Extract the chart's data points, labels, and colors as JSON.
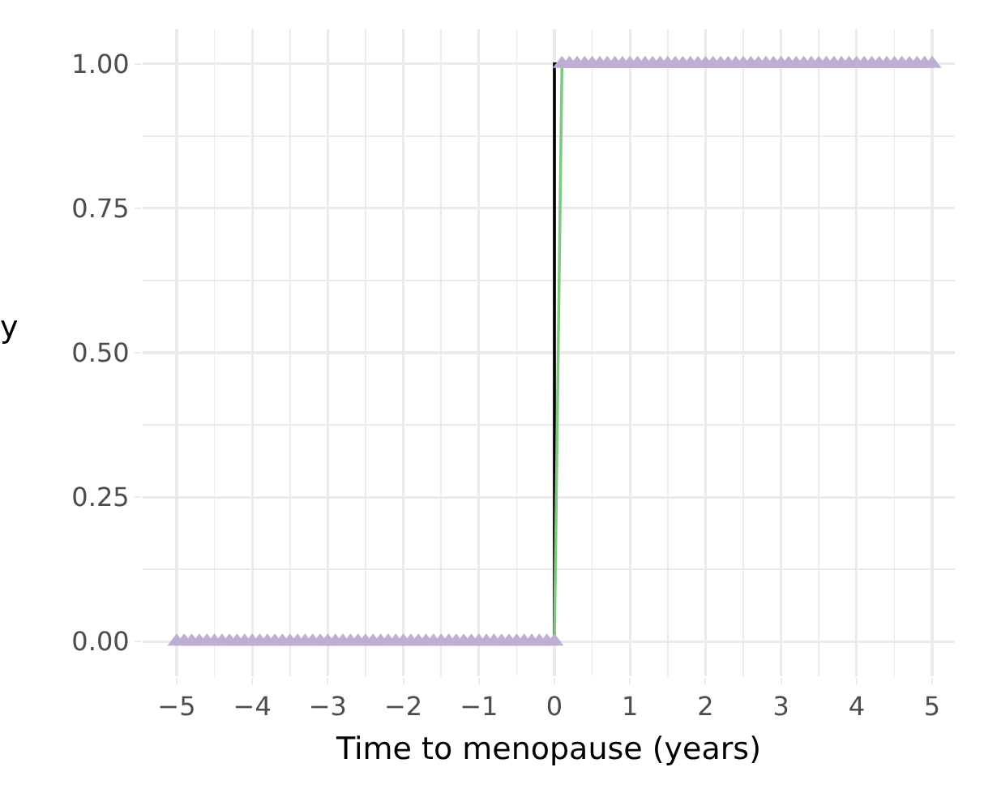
{
  "chart_data": {
    "type": "line",
    "xlabel": "Time to menopause (years)",
    "ylabel": "y",
    "xlim": [
      -5.45,
      5.3
    ],
    "ylim": [
      -0.06,
      1.06
    ],
    "xticks": [
      {
        "value": -5,
        "label": "−5"
      },
      {
        "value": -4,
        "label": "−4"
      },
      {
        "value": -3,
        "label": "−3"
      },
      {
        "value": -2,
        "label": "−2"
      },
      {
        "value": -1,
        "label": "−1"
      },
      0,
      1,
      2,
      3,
      4,
      5
    ],
    "yticks": [
      {
        "value": 0,
        "label": "0.00"
      },
      {
        "value": 0.25,
        "label": "0.25"
      },
      {
        "value": 0.5,
        "label": "0.50"
      },
      {
        "value": 0.75,
        "label": "0.75"
      },
      {
        "value": 1,
        "label": "1.00"
      }
    ],
    "grid": true,
    "series": [
      {
        "color": "#000000",
        "x": [
          -5,
          0,
          0,
          5
        ],
        "values": [
          0,
          0,
          1,
          1
        ]
      },
      {
        "type": "line",
        "color": "#7fc97f",
        "x": [
          -5,
          0,
          0.1,
          5
        ],
        "values": [
          0,
          0,
          1,
          1
        ]
      },
      {
        "type": "scatter",
        "marker": "triangle",
        "color": "#beaed4",
        "x": [
          -5,
          -4.9,
          -4.8,
          -4.7,
          -4.6,
          -4.5,
          -4.4,
          -4.3,
          -4.2,
          -4.1,
          -4,
          -3.9,
          -3.8,
          -3.7,
          -3.6,
          -3.5,
          -3.4,
          -3.3,
          -3.2,
          -3.1,
          -3,
          -2.9,
          -2.8,
          -2.7,
          -2.6,
          -2.5,
          -2.4,
          -2.3,
          -2.2,
          -2.1,
          -2,
          -1.9,
          -1.8,
          -1.7,
          -1.6,
          -1.5,
          -1.4,
          -1.3,
          -1.2,
          -1.1,
          -1,
          -0.9,
          -0.8,
          -0.7,
          -0.6,
          -0.5,
          -0.4,
          -0.3,
          -0.2,
          -0.1,
          0,
          0.1,
          0.2,
          0.3,
          0.4,
          0.5,
          0.6,
          0.7,
          0.8,
          0.9,
          1,
          1.1,
          1.2,
          1.3,
          1.4,
          1.5,
          1.6,
          1.7,
          1.8,
          1.9,
          2,
          2.1,
          2.2,
          2.3,
          2.4,
          2.5,
          2.6,
          2.7,
          2.8,
          2.9,
          3,
          3.1,
          3.2,
          3.3,
          3.4,
          3.5,
          3.6,
          3.7,
          3.8,
          3.9,
          4,
          4.1,
          4.2,
          4.3,
          4.4,
          4.5,
          4.6,
          4.7,
          4.8,
          4.9,
          5
        ],
        "values": [
          0,
          0,
          0,
          0,
          0,
          0,
          0,
          0,
          0,
          0,
          0,
          0,
          0,
          0,
          0,
          0,
          0,
          0,
          0,
          0,
          0,
          0,
          0,
          0,
          0,
          0,
          0,
          0,
          0,
          0,
          0,
          0,
          0,
          0,
          0,
          0,
          0,
          0,
          0,
          0,
          0,
          0,
          0,
          0,
          0,
          0,
          0,
          0,
          0,
          0,
          0,
          1,
          1,
          1,
          1,
          1,
          1,
          1,
          1,
          1,
          1,
          1,
          1,
          1,
          1,
          1,
          1,
          1,
          1,
          1,
          1,
          1,
          1,
          1,
          1,
          1,
          1,
          1,
          1,
          1,
          1,
          1,
          1,
          1,
          1,
          1,
          1,
          1,
          1,
          1,
          1,
          1,
          1,
          1,
          1,
          1,
          1,
          1,
          1,
          1,
          1
        ]
      }
    ]
  }
}
